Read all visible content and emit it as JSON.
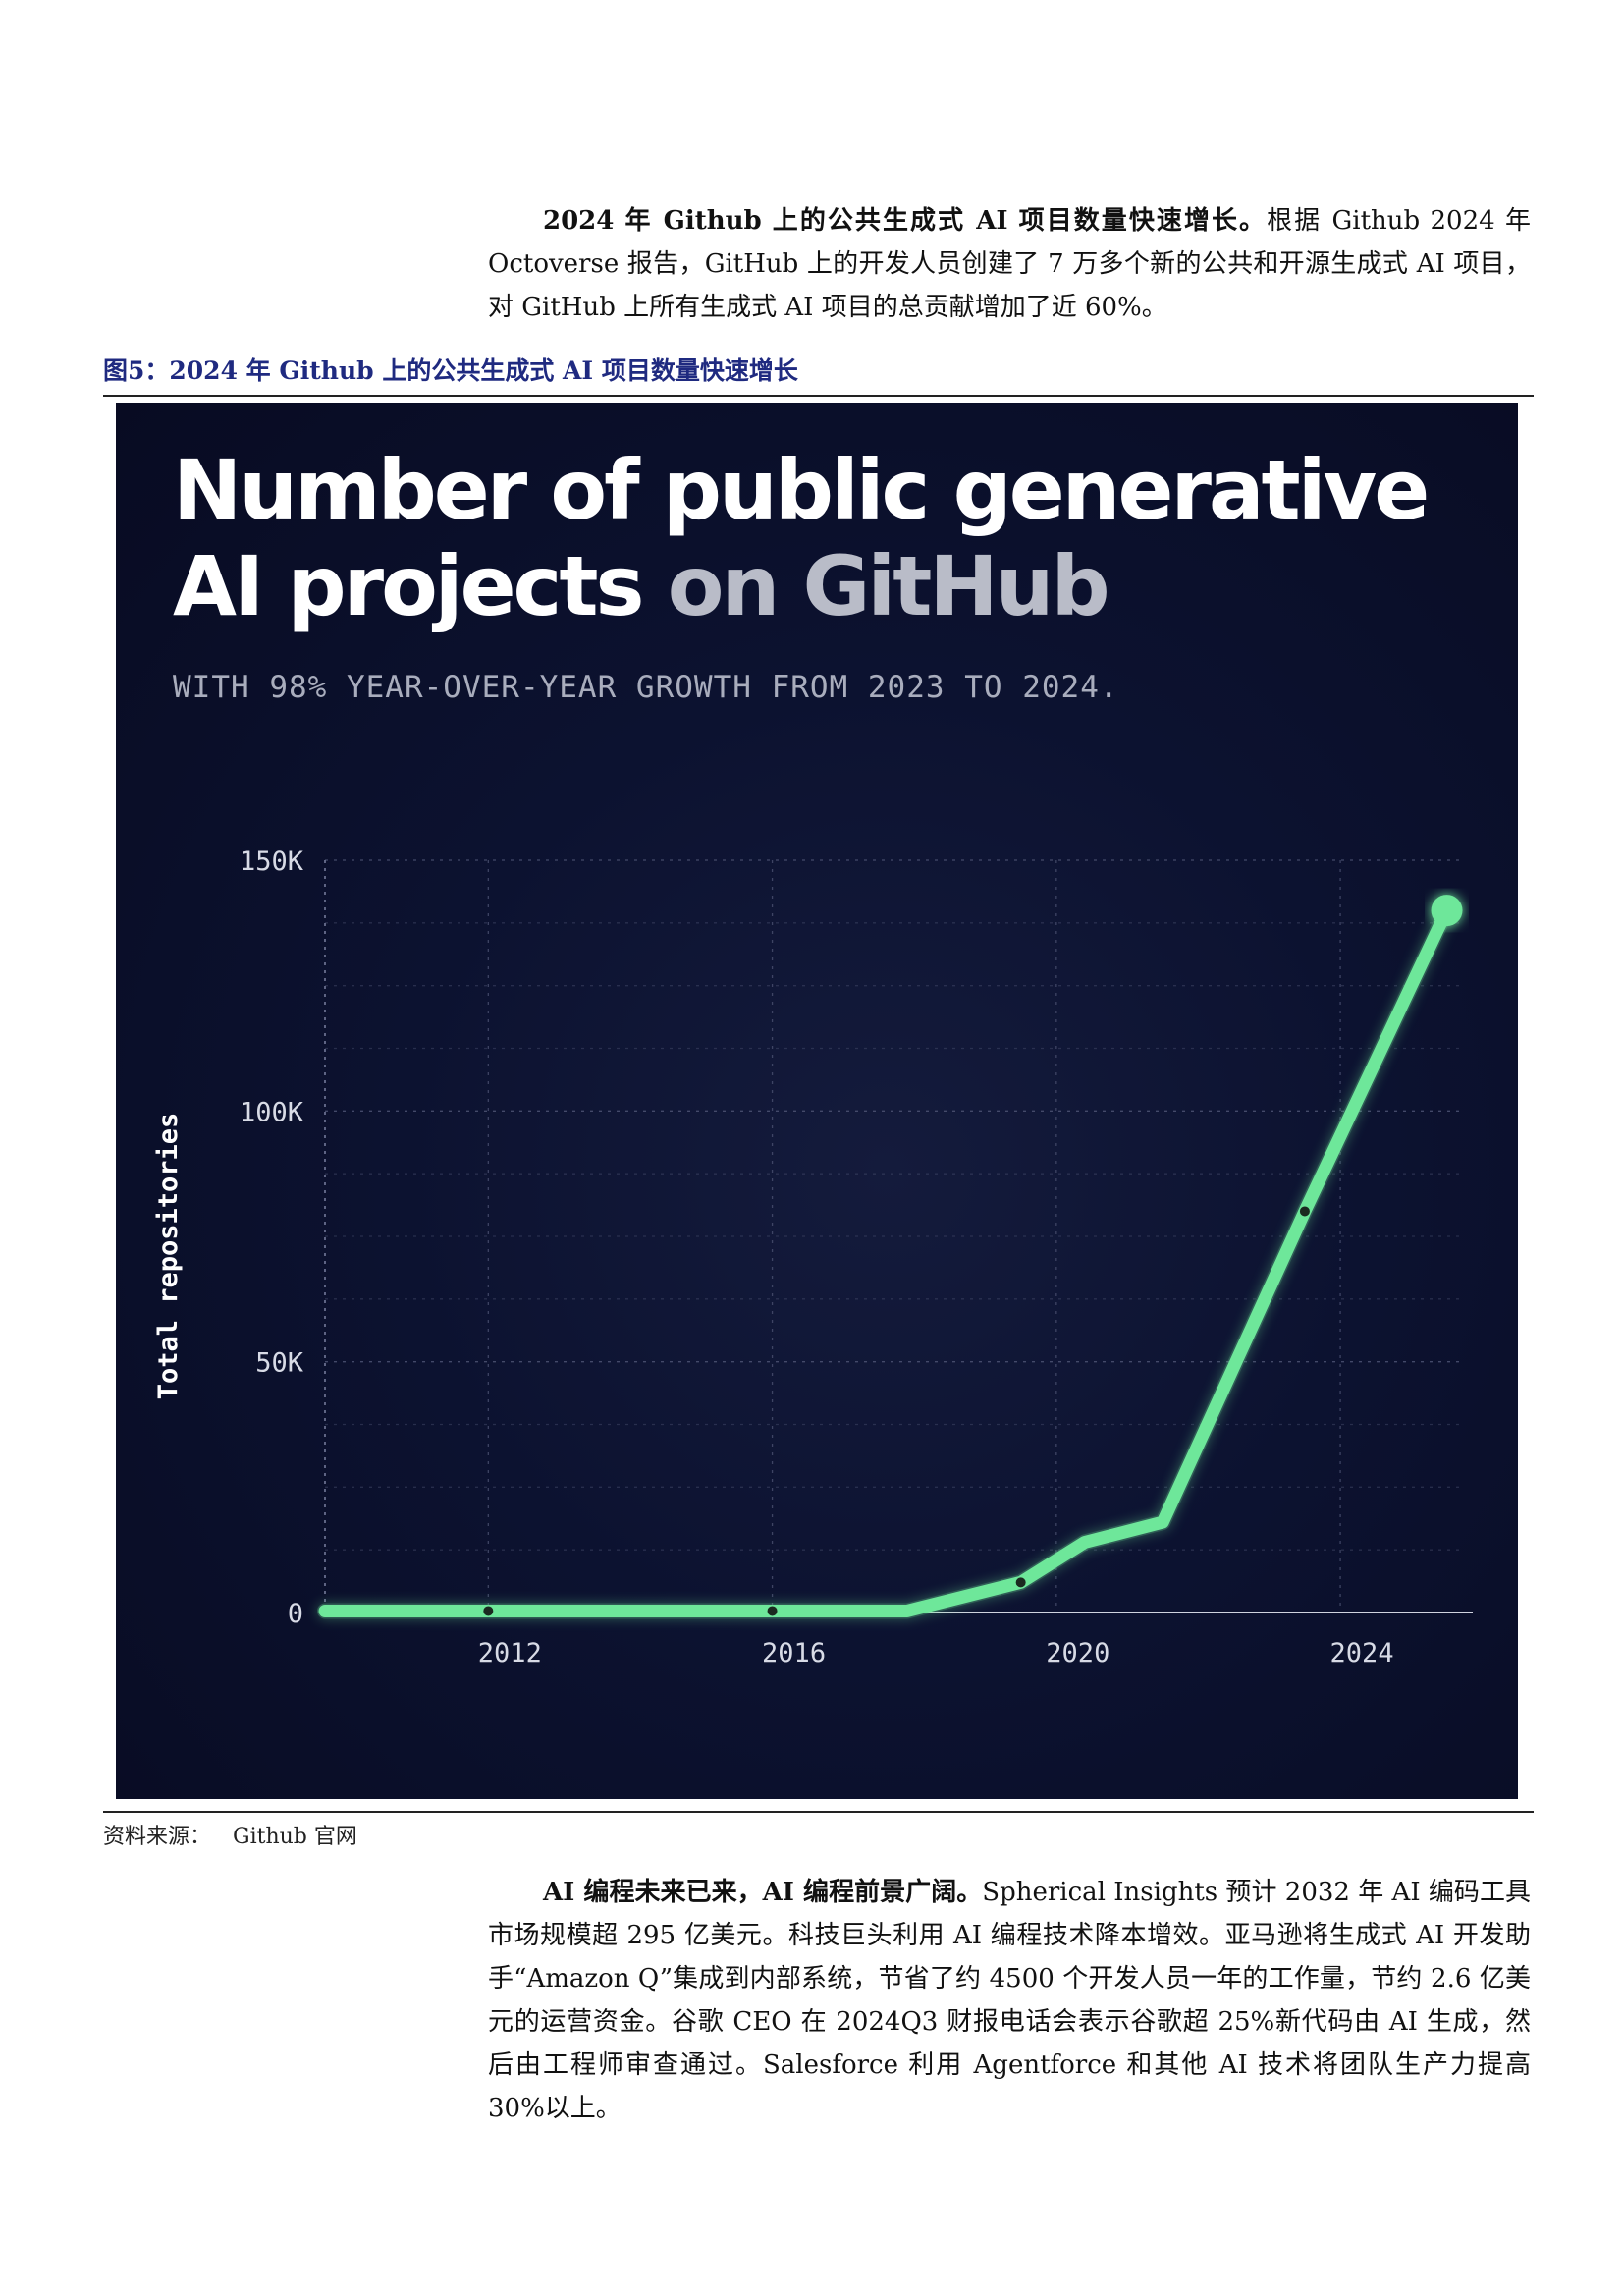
{
  "intro": {
    "lead": "2024 年 Github 上的公共生成式 AI 项目数量快速增长。",
    "body": "根据 Github 2024 年 Octoverse 报告，GitHub 上的开发人员创建了 7 万多个新的公共和开源生成式 AI 项目，对 GitHub 上所有生成式 AI 项目的总贡献增加了近 60%。"
  },
  "figure": {
    "title": "图5：2024 年 Github 上的公共生成式 AI 项目数量快速增长",
    "source_label": "资料来源：",
    "source_value": "Github 官网"
  },
  "chart": {
    "title_line1": "Number of public generative",
    "title_line2_bright": "AI projects",
    "title_line2_dim": " on GitHub",
    "subtitle": "WITH 98% YEAR-OVER-YEAR GROWTH FROM 2023 TO 2024."
  },
  "chart_data": {
    "type": "line",
    "title": "Number of public generative AI projects on GitHub",
    "subtitle": "WITH 98% YEAR-OVER-YEAR GROWTH FROM 2023 TO 2024.",
    "xlabel": "",
    "ylabel": "Total repositories",
    "x_ticks": [
      "2012",
      "2016",
      "2020",
      "2024"
    ],
    "y_ticks": [
      "0",
      "50K",
      "100K",
      "150K"
    ],
    "xlim": [
      2009.7,
      2025.7
    ],
    "ylim": [
      0,
      150000
    ],
    "grid": true,
    "series": [
      {
        "name": "Total repositories",
        "color": "#6ee79a",
        "x": [
          2009.7,
          2012,
          2016,
          2017.9,
          2019.5,
          2020.4,
          2021.5,
          2023.5,
          2025.5
        ],
        "y": [
          300,
          300,
          300,
          300,
          6000,
          14000,
          18000,
          80000,
          140000
        ],
        "markers_x": [
          2012,
          2016,
          2019.5,
          2023.5
        ],
        "markers_y": [
          300,
          300,
          6000,
          80000
        ],
        "endpoint_x": 2025.5,
        "endpoint_y": 140000
      }
    ]
  },
  "outro": {
    "lead": "AI 编程未来已来，AI 编程前景广阔。",
    "body": "Spherical Insights 预计 2032 年 AI 编码工具市场规模超 295 亿美元。科技巨头利用 AI 编程技术降本增效。亚马逊将生成式 AI 开发助手“Amazon Q”集成到内部系统，节省了约 4500 个开发人员一年的工作量，节约 2.6 亿美元的运营资金。谷歌 CEO 在 2024Q3 财报电话会表示谷歌超 25%新代码由 AI 生成，然后由工程师审查通过。Salesforce 利用 Agentforce 和其他 AI 技术将团队生产力提高 30%以上。"
  }
}
